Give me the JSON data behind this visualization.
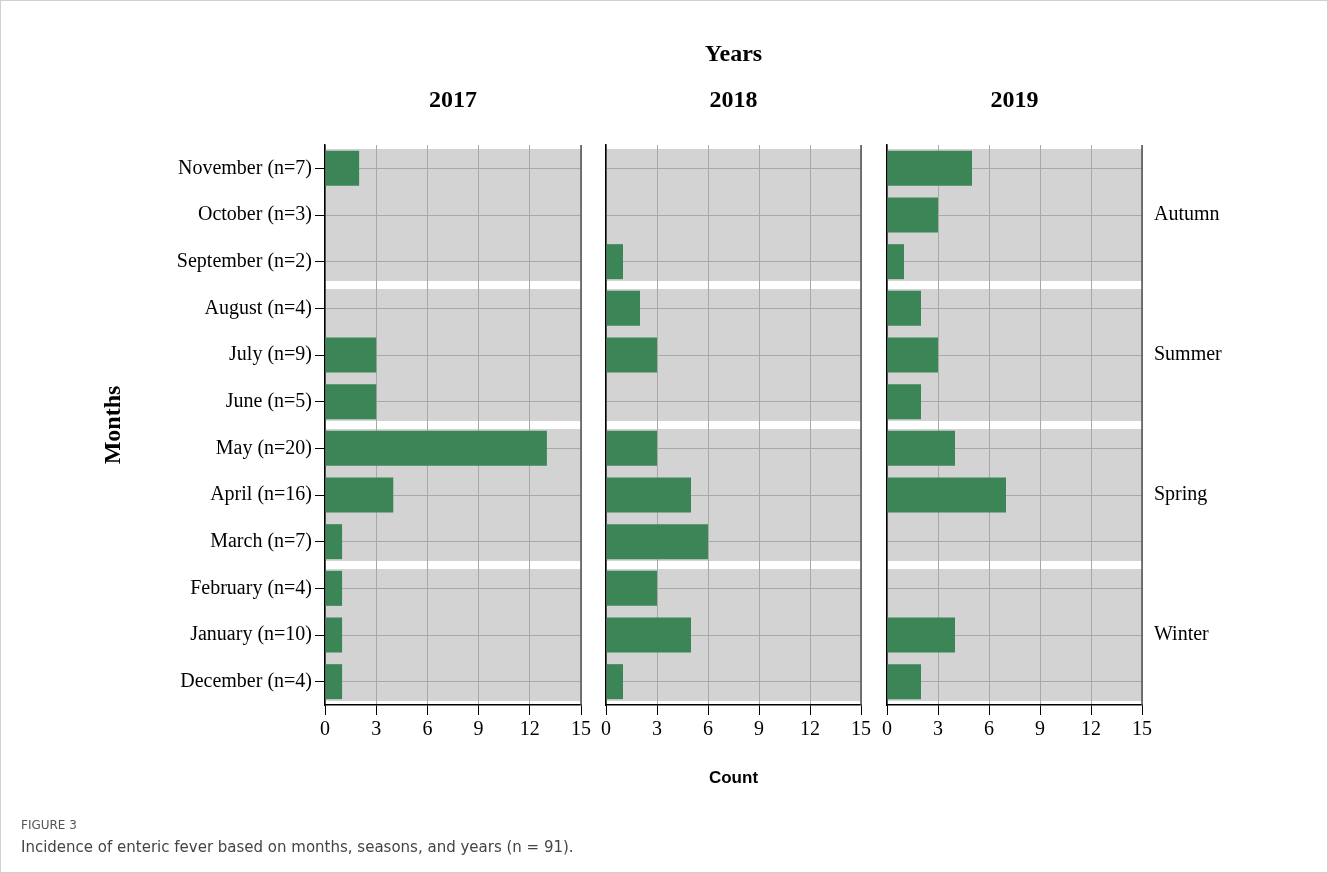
{
  "chart_data": [
    {
      "type": "bar",
      "orientation": "horizontal",
      "title": "2017",
      "ylabel": "Months",
      "annotations": [
        "FIGURE 3",
        "Incidence of enteric fever based on months, seasons, and years (n = 91)."
      ],
      "categories": [
        "November (n=7)",
        "October (n=3)",
        "September (n=2)",
        "August (n=4)",
        "July (n=9)",
        "June (n=5)",
        "May (n=20)",
        "April (n=16)",
        "March (n=7)",
        "February (n=4)",
        "January (n=10)",
        "December (n=4)"
      ],
      "values": [
        2,
        0,
        0,
        0,
        3,
        3,
        13,
        4,
        1,
        1,
        1,
        1
      ],
      "color": "#3b8557",
      "xlim": [
        0,
        15
      ],
      "xticks": [
        0,
        3,
        6,
        9,
        12,
        15
      ],
      "grid": true,
      "bands": [
        {
          "axis": "y",
          "from": "November (n=7)",
          "to": "September (n=2)",
          "color": "#d3d3d3"
        },
        {
          "axis": "y",
          "from": "August (n=4)",
          "to": "June (n=5)",
          "color": "#d3d3d3"
        },
        {
          "axis": "y",
          "from": "May (n=20)",
          "to": "March (n=7)",
          "color": "#d3d3d3"
        },
        {
          "axis": "y",
          "from": "February (n=4)",
          "to": "December (n=4)",
          "color": "#d3d3d3"
        }
      ]
    },
    {
      "type": "bar",
      "orientation": "horizontal",
      "title": "2018",
      "xlabel": "Count",
      "annotations": [
        "Years"
      ],
      "tick_labels": "x",
      "categories": [
        "November (n=7)",
        "October (n=3)",
        "September (n=2)",
        "August (n=4)",
        "July (n=9)",
        "June (n=5)",
        "May (n=20)",
        "April (n=16)",
        "March (n=7)",
        "February (n=4)",
        "January (n=10)",
        "December (n=4)"
      ],
      "values": [
        0,
        0,
        1,
        2,
        3,
        0,
        3,
        5,
        6,
        3,
        5,
        1
      ],
      "color": "#3b8557",
      "xlim": [
        0,
        15
      ],
      "xticks": [
        0,
        3,
        6,
        9,
        12,
        15
      ],
      "grid": true,
      "bands": [
        {
          "axis": "y",
          "from": "November (n=7)",
          "to": "September (n=2)",
          "color": "#d3d3d3"
        },
        {
          "axis": "y",
          "from": "August (n=4)",
          "to": "June (n=5)",
          "color": "#d3d3d3"
        },
        {
          "axis": "y",
          "from": "May (n=20)",
          "to": "March (n=7)",
          "color": "#d3d3d3"
        },
        {
          "axis": "y",
          "from": "February (n=4)",
          "to": "December (n=4)",
          "color": "#d3d3d3"
        }
      ]
    },
    {
      "type": "bar",
      "orientation": "horizontal",
      "title": "2019",
      "tick_labels": "x",
      "categories": [
        "November (n=7)",
        "October (n=3)",
        "September (n=2)",
        "August (n=4)",
        "July (n=9)",
        "June (n=5)",
        "May (n=20)",
        "April (n=16)",
        "March (n=7)",
        "February (n=4)",
        "January (n=10)",
        "December (n=4)"
      ],
      "values": [
        5,
        3,
        1,
        2,
        3,
        2,
        4,
        7,
        0,
        0,
        4,
        2
      ],
      "color": "#3b8557",
      "xlim": [
        0,
        15
      ],
      "xticks": [
        0,
        3,
        6,
        9,
        12,
        15
      ],
      "grid": true,
      "bands": [
        {
          "axis": "y",
          "from": "November (n=7)",
          "to": "September (n=2)",
          "label": "Autumn",
          "color": "#d3d3d3"
        },
        {
          "axis": "y",
          "from": "August (n=4)",
          "to": "June (n=5)",
          "label": "Summer",
          "color": "#d3d3d3"
        },
        {
          "axis": "y",
          "from": "May (n=20)",
          "to": "March (n=7)",
          "label": "Spring",
          "color": "#d3d3d3"
        },
        {
          "axis": "y",
          "from": "February (n=4)",
          "to": "December (n=4)",
          "label": "Winter",
          "color": "#d3d3d3"
        }
      ]
    }
  ]
}
